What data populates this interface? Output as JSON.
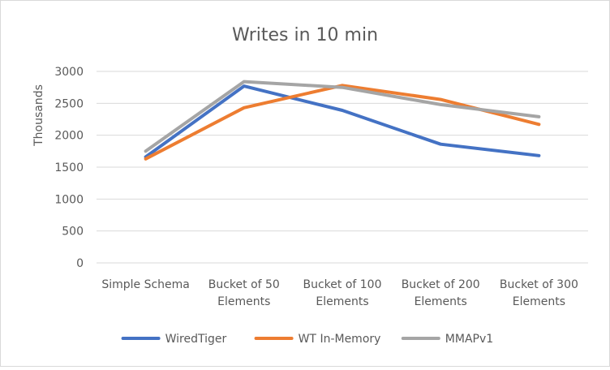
{
  "chart_data": {
    "type": "line",
    "title": "Writes in 10 min",
    "xlabel": "",
    "ylabel": "Thousands",
    "categories": [
      [
        "Simple Schema"
      ],
      [
        "Bucket of 50",
        "Elements"
      ],
      [
        "Bucket of 100",
        "Elements"
      ],
      [
        "Bucket of 200",
        "Elements"
      ],
      [
        "Bucket of 300",
        "Elements"
      ]
    ],
    "ylim": [
      0,
      3000
    ],
    "yticks": [
      0,
      500,
      1000,
      1500,
      2000,
      2500,
      3000
    ],
    "grid": true,
    "legend_position": "bottom",
    "series": [
      {
        "name": "WiredTiger",
        "color": "#4472c4",
        "values": [
          1660,
          2770,
          2390,
          1860,
          1680
        ]
      },
      {
        "name": "WT In-Memory",
        "color": "#ed7d31",
        "values": [
          1630,
          2430,
          2780,
          2560,
          2170
        ]
      },
      {
        "name": "MMAPv1",
        "color": "#a5a5a5",
        "values": [
          1750,
          2840,
          2750,
          2480,
          2290
        ]
      }
    ]
  }
}
